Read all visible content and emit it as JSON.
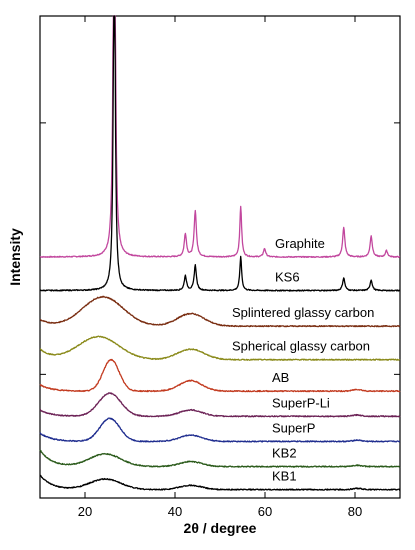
{
  "chart_data": {
    "type": "line",
    "xlabel": "2θ / degree",
    "ylabel": "Intensity",
    "xlim": [
      10,
      90
    ],
    "xticks": [
      20,
      40,
      60,
      80
    ],
    "y_scale": "offset stacked patterns (arbitrary units)",
    "grid": false,
    "legend": "inline labels right of each trace",
    "series": [
      {
        "name": "Graphite",
        "color": "#c2479e",
        "baseline": 5.75,
        "kind": "graphite",
        "peaks": [
          [
            26.5,
            12.0,
            0.25
          ],
          [
            42.3,
            0.55,
            0.3
          ],
          [
            44.5,
            1.1,
            0.3
          ],
          [
            54.6,
            1.2,
            0.25
          ],
          [
            59.9,
            0.2,
            0.3
          ],
          [
            77.5,
            0.7,
            0.3
          ],
          [
            83.6,
            0.5,
            0.3
          ],
          [
            87.0,
            0.15,
            0.3
          ]
        ]
      },
      {
        "name": "KS6",
        "color": "#000000",
        "baseline": 4.95,
        "kind": "graphite",
        "peaks": [
          [
            26.5,
            9.0,
            0.25
          ],
          [
            42.3,
            0.35,
            0.3
          ],
          [
            44.5,
            0.6,
            0.3
          ],
          [
            54.6,
            0.8,
            0.25
          ],
          [
            77.5,
            0.3,
            0.3
          ],
          [
            83.6,
            0.25,
            0.3
          ]
        ]
      },
      {
        "name": "Splintered glassy carbon",
        "color": "#7a2e12",
        "baseline": 4.1,
        "kind": "amorphous",
        "peaks": [
          [
            24.0,
            0.7,
            4.5
          ],
          [
            43.5,
            0.3,
            3.0
          ]
        ],
        "start": 0.15
      },
      {
        "name": "Spherical glassy carbon",
        "color": "#8a8a1a",
        "baseline": 3.3,
        "kind": "amorphous",
        "peaks": [
          [
            23.0,
            0.55,
            4.5
          ],
          [
            43.5,
            0.25,
            3.0
          ]
        ],
        "start": 0.25
      },
      {
        "name": "AB",
        "color": "#c23a1f",
        "baseline": 2.55,
        "kind": "amorphous",
        "peaks": [
          [
            25.8,
            0.75,
            1.8
          ],
          [
            43.5,
            0.25,
            2.5
          ],
          [
            80.5,
            0.04,
            1.0
          ]
        ],
        "start": 0.15
      },
      {
        "name": "SuperP-Li",
        "color": "#6b2155",
        "baseline": 1.95,
        "kind": "amorphous",
        "peaks": [
          [
            25.5,
            0.55,
            2.5
          ],
          [
            43.5,
            0.15,
            2.5
          ],
          [
            80.5,
            0.03,
            1.0
          ]
        ],
        "start": 0.15
      },
      {
        "name": "SuperP",
        "color": "#1f2d8f",
        "baseline": 1.35,
        "kind": "amorphous",
        "peaks": [
          [
            25.5,
            0.55,
            2.2
          ],
          [
            43.5,
            0.15,
            2.5
          ],
          [
            80.5,
            0.03,
            1.0
          ]
        ],
        "start": 0.2
      },
      {
        "name": "KB2",
        "color": "#2a5a1a",
        "baseline": 0.75,
        "kind": "amorphous",
        "peaks": [
          [
            24.5,
            0.3,
            3.5
          ],
          [
            43.5,
            0.12,
            2.5
          ],
          [
            80.5,
            0.03,
            1.0
          ]
        ],
        "start": 0.4
      },
      {
        "name": "KB1",
        "color": "#000000",
        "baseline": 0.2,
        "kind": "amorphous",
        "peaks": [
          [
            24.5,
            0.25,
            3.5
          ],
          [
            43.5,
            0.1,
            2.5
          ],
          [
            80.5,
            0.03,
            1.0
          ]
        ],
        "start": 0.35
      }
    ]
  }
}
